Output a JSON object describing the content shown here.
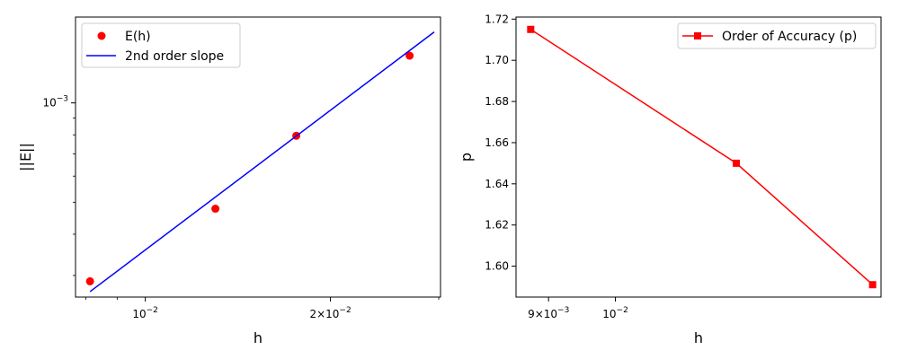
{
  "chart_data": [
    {
      "type": "scatter",
      "xscale": "log",
      "yscale": "log",
      "xlabel": "h",
      "ylabel": "||E||",
      "xlim": [
        0.0077,
        0.0302
      ],
      "ylim": [
        0.000258,
        0.00182
      ],
      "x_ticks": [
        {
          "value": 0.01,
          "base": "10",
          "exp": "−2"
        },
        {
          "value": 0.02,
          "base": "2×10",
          "exp": "−2"
        }
      ],
      "x_minor_ticks": [
        0.008,
        0.009,
        0.03
      ],
      "y_ticks": [
        {
          "value": 0.001,
          "base": "10",
          "exp": "−3"
        }
      ],
      "y_minor_ticks": [
        0.0003,
        0.0004,
        0.0005,
        0.0006,
        0.0007,
        0.0008,
        0.0009
      ],
      "legend": "top-left",
      "series": [
        {
          "name": "E(h)",
          "kind": "markers",
          "color": "#ff0000",
          "x": [
            0.00813,
            0.013,
            0.0176,
            0.0269
          ],
          "y": [
            0.000288,
            0.000478,
            0.000795,
            0.00139
          ]
        },
        {
          "name": "2nd order slope",
          "kind": "line",
          "color": "#0000ff",
          "x": [
            0.00813,
            0.0295
          ],
          "y": [
            0.000268,
            0.00164
          ]
        }
      ]
    },
    {
      "type": "line",
      "xscale": "log",
      "xlabel": "h",
      "ylabel": "p",
      "xlim": [
        0.00855,
        0.0152
      ],
      "ylim": [
        1.585,
        1.721
      ],
      "x_ticks": [
        {
          "value": 0.009,
          "base": "9×10",
          "exp": "−3"
        },
        {
          "value": 0.01,
          "base": "10",
          "exp": "−2"
        }
      ],
      "y_ticks": [
        1.6,
        1.62,
        1.64,
        1.66,
        1.68,
        1.7,
        1.72
      ],
      "legend": "top-right",
      "series": [
        {
          "name": "Order of Accuracy (p)",
          "kind": "line-square",
          "color": "#ff0000",
          "x": [
            0.00875,
            0.0121,
            0.015
          ],
          "y": [
            1.715,
            1.65,
            1.591
          ]
        }
      ]
    }
  ]
}
